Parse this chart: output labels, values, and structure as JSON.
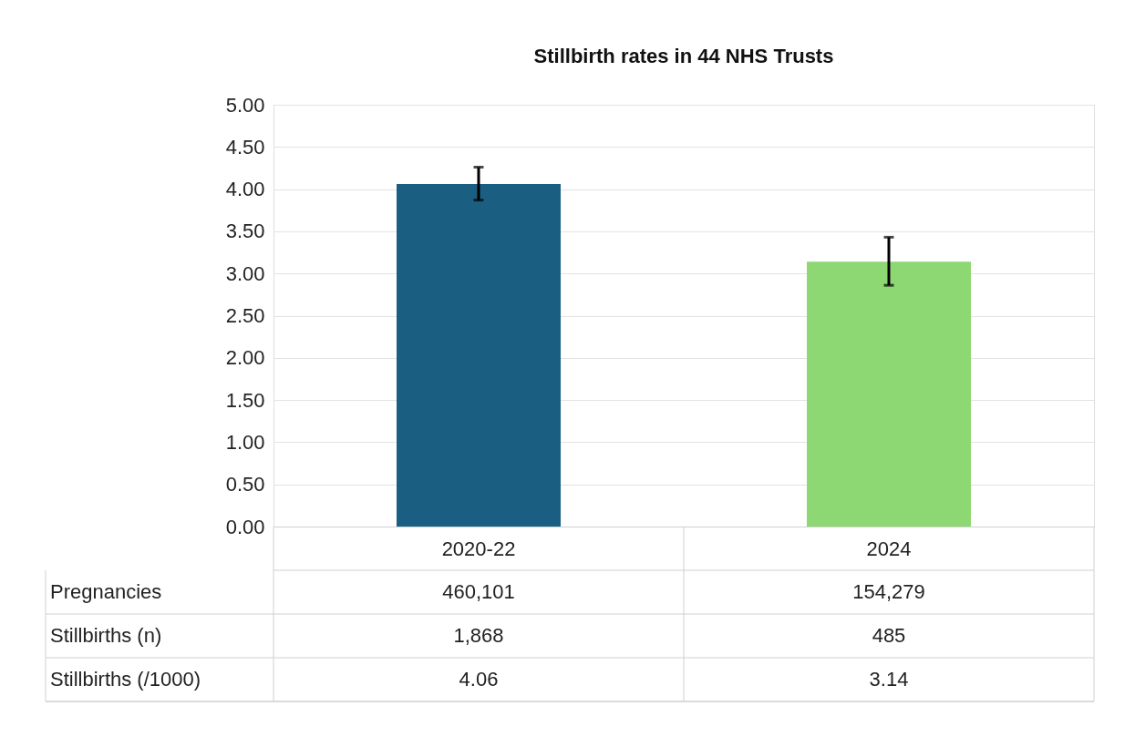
{
  "chart_data": {
    "type": "bar",
    "title": "Stillbirth rates in 44 NHS Trusts",
    "categories": [
      "2020-22",
      "2024"
    ],
    "values": [
      4.06,
      3.14
    ],
    "colors": [
      "#1a5f82",
      "#8dd873"
    ],
    "errors": [
      [
        3.87,
        4.26
      ],
      [
        2.86,
        3.43
      ]
    ],
    "ylim": [
      0,
      5
    ],
    "yticks": [
      {
        "value": 0,
        "label": "0.00"
      },
      {
        "value": 0.5,
        "label": "0.50"
      },
      {
        "value": 1,
        "label": "1.00"
      },
      {
        "value": 1.5,
        "label": "1.50"
      },
      {
        "value": 2,
        "label": "2.00"
      },
      {
        "value": 2.5,
        "label": "2.50"
      },
      {
        "value": 3,
        "label": "3.00"
      },
      {
        "value": 3.5,
        "label": "3.50"
      },
      {
        "value": 4,
        "label": "4.00"
      },
      {
        "value": 4.5,
        "label": "4.50"
      },
      {
        "value": 5,
        "label": "5.00"
      }
    ],
    "grid": "y",
    "data_labels": true,
    "annotations": [
      "Pregnancies",
      "460,101",
      "154,279",
      "Stillbirths (n)",
      "1,868",
      "485",
      "Stillbirths (/1000)"
    ]
  }
}
